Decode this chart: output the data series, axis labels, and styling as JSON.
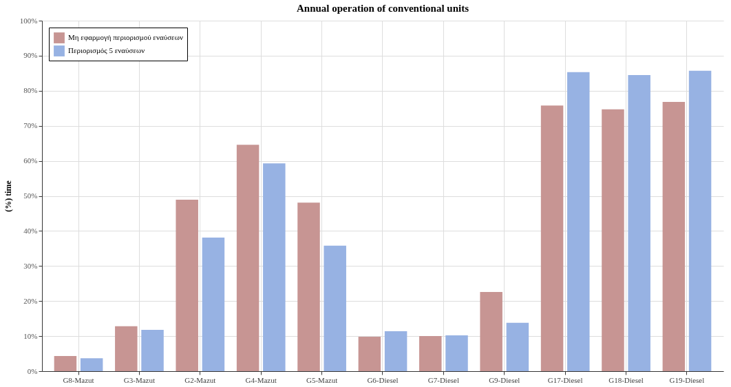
{
  "chart_data": {
    "type": "bar",
    "title": "Annual operation of conventional units",
    "ylabel": "(%) time",
    "categories": [
      "G8-Mazut",
      "G3-Mazut",
      "G2-Mazut",
      "G4-Mazut",
      "G5-Mazut",
      "G6-Diesel",
      "G7-Diesel",
      "G9-Diesel",
      "G17-Diesel",
      "G18-Diesel",
      "G19-Diesel"
    ],
    "series": [
      {
        "name": "Μη εφαρμογή περιορισμού εναύσεων",
        "color": "#c79593",
        "values": [
          4.3,
          12.8,
          48.9,
          64.6,
          48.1,
          9.8,
          10,
          22.6,
          75.8,
          74.7,
          76.8
        ]
      },
      {
        "name": "Περιορισμός 5 εναύσεων",
        "color": "#97b2e3",
        "values": [
          3.7,
          11.8,
          38.1,
          59.3,
          35.8,
          11.4,
          10.2,
          13.8,
          85.3,
          84.5,
          85.7
        ]
      }
    ],
    "ylim": [
      0,
      100
    ],
    "yticks": [
      {
        "value": 0,
        "label": "0%"
      },
      {
        "value": 10,
        "label": "10%"
      },
      {
        "value": 20,
        "label": "20%"
      },
      {
        "value": 30,
        "label": "30%"
      },
      {
        "value": 40,
        "label": "40%"
      },
      {
        "value": 50,
        "label": "50%"
      },
      {
        "value": 60,
        "label": "60%"
      },
      {
        "value": 70,
        "label": "70%"
      },
      {
        "value": 80,
        "label": "80%"
      },
      {
        "value": 90,
        "label": "90%"
      },
      {
        "value": 100,
        "label": "100%"
      }
    ],
    "grid": true,
    "legend": "top left"
  }
}
